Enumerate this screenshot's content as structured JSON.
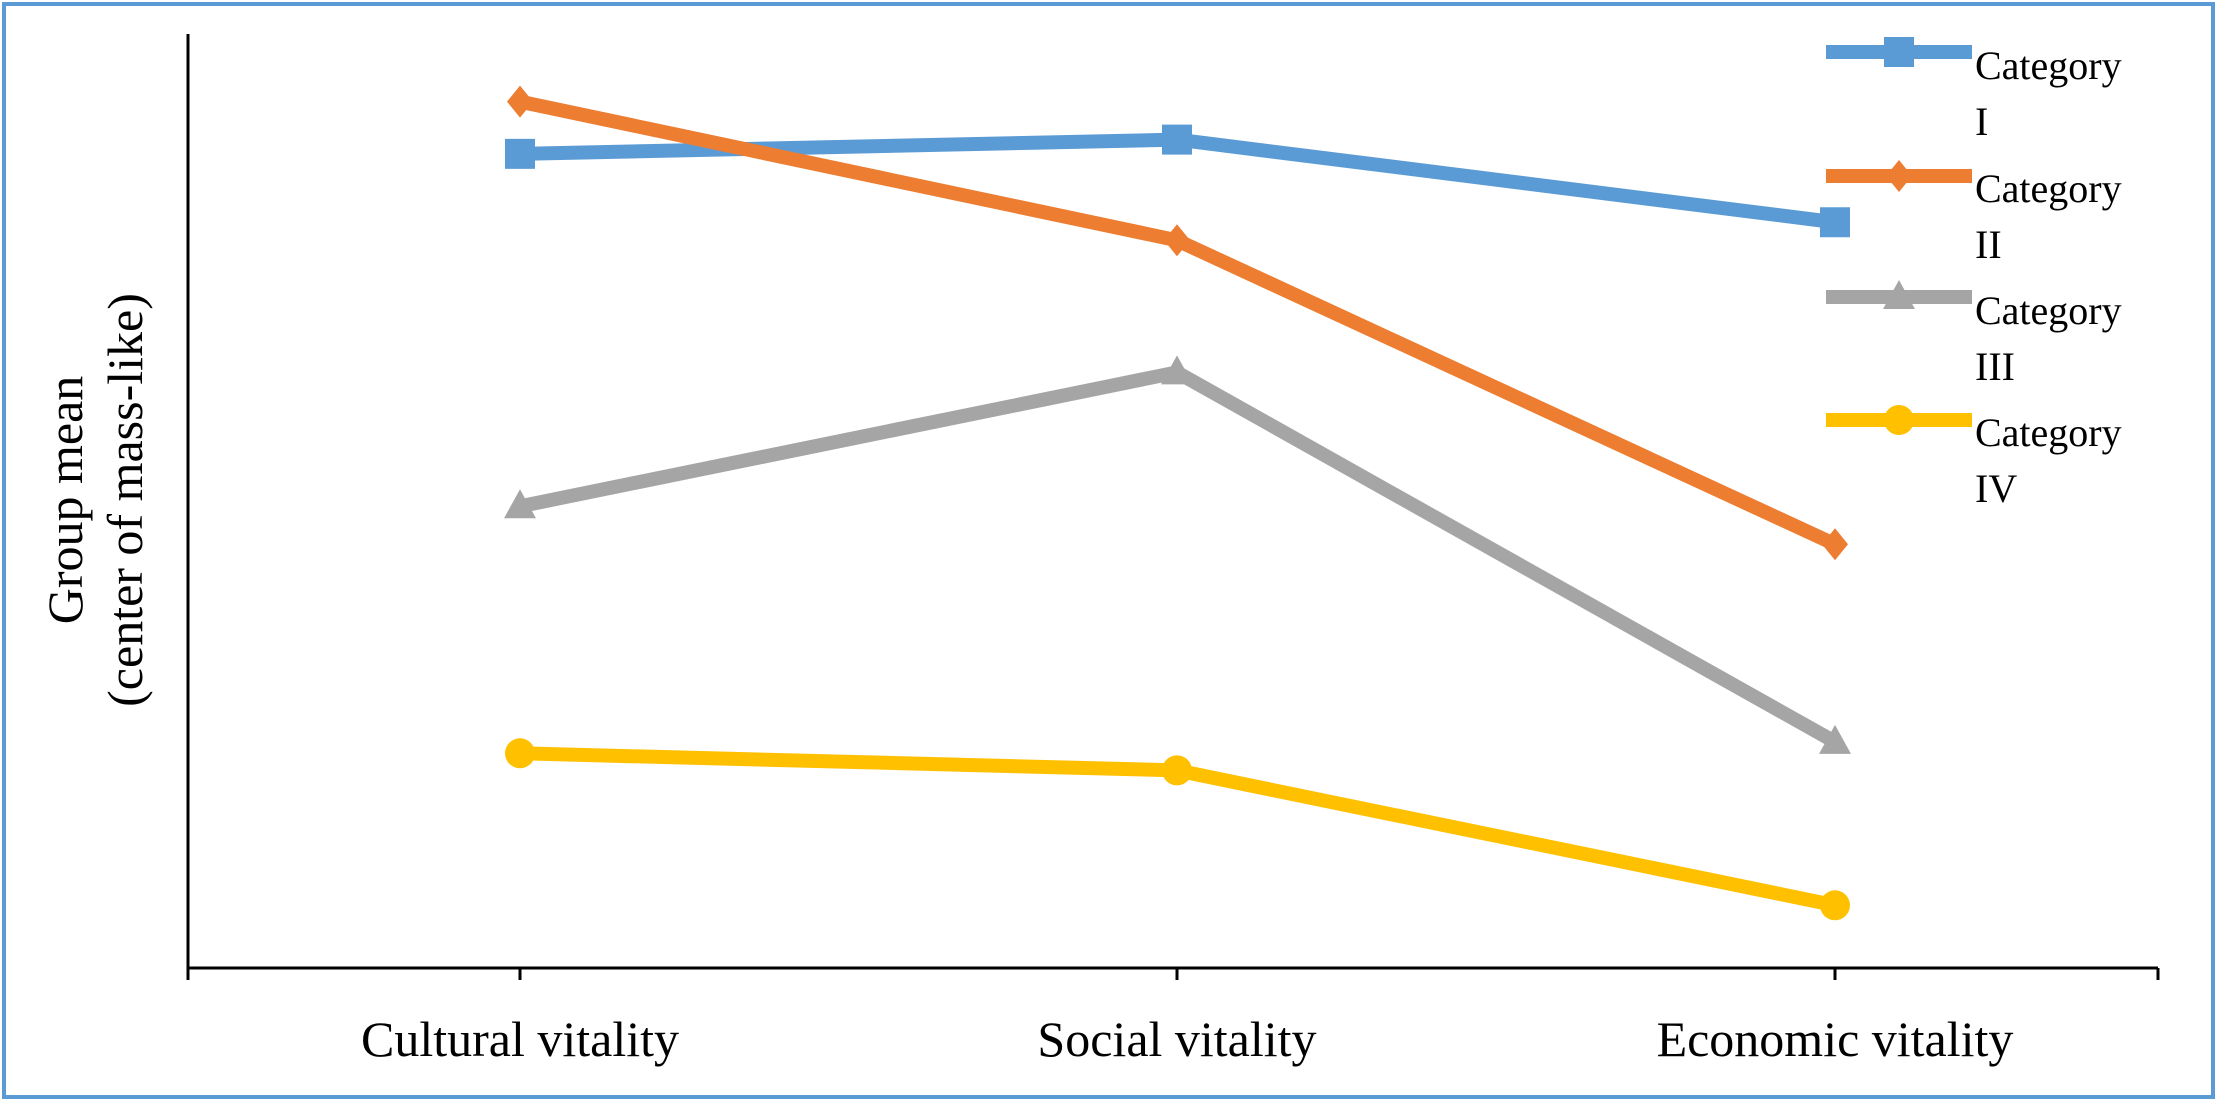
{
  "chart_data": {
    "type": "line",
    "title": "",
    "xlabel": "",
    "ylabel": "Group mean",
    "ylabel_line2": "(center of mass-like)",
    "categories": [
      "Cultural vitality",
      "Social vitality",
      "Economic vitality"
    ],
    "ylim": [
      0,
      100
    ],
    "grid": false,
    "y_ticks_shown": false,
    "legend_position": "top-right",
    "series": [
      {
        "name": "Category I",
        "name_line1": "Category",
        "name_line2": "I",
        "marker": "square",
        "color": "#5b9bd5",
        "values": [
          85.7,
          87.2,
          78.5
        ]
      },
      {
        "name": "Category II",
        "name_line1": "Category",
        "name_line2": "II",
        "marker": "diamond",
        "color": "#ed7d31",
        "values": [
          91.2,
          76.6,
          44.6
        ]
      },
      {
        "name": "Category III",
        "name_line1": "Category",
        "name_line2": "III",
        "marker": "triangle",
        "color": "#a5a5a5",
        "values": [
          48.6,
          62.7,
          23.8
        ]
      },
      {
        "name": "Category IV",
        "name_line1": "Category",
        "name_line2": "IV",
        "marker": "circle",
        "color": "#ffc000",
        "values": [
          22.6,
          20.8,
          6.6
        ]
      }
    ]
  }
}
